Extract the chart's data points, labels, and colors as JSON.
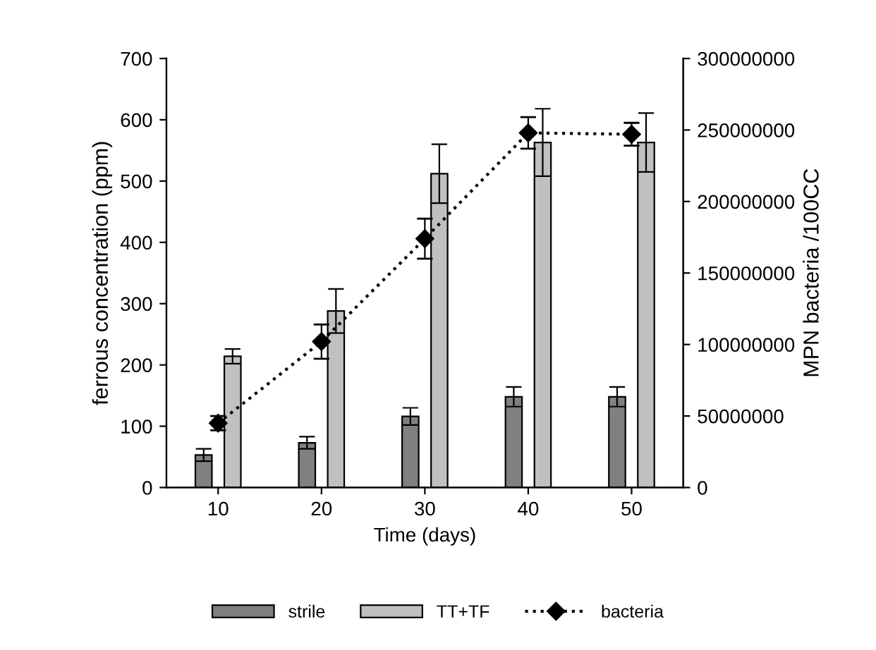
{
  "chart_data": {
    "type": "bar",
    "xlabel": "Time (days)",
    "ylabel": "ferrous concentration (ppm)",
    "y2label": "MPN bacteria /100CC",
    "categories": [
      "10",
      "20",
      "30",
      "40",
      "50"
    ],
    "series": [
      {
        "name": "strile",
        "color": "#808080",
        "values": [
          53,
          73,
          116,
          148,
          148
        ],
        "errors": [
          10,
          10,
          14,
          16,
          16
        ]
      },
      {
        "name": "TT+TF",
        "color": "#c0c0c0",
        "values": [
          214,
          288,
          512,
          563,
          563
        ],
        "errors": [
          12,
          36,
          48,
          55,
          48
        ]
      },
      {
        "name": "bacteria",
        "type": "line",
        "axis": "y2",
        "color": "#000000",
        "marker": "diamond",
        "line_style": "dotted",
        "values": [
          45000000,
          102000000,
          174000000,
          248000000,
          247000000
        ],
        "errors": [
          5000000,
          12000000,
          14000000,
          11000000,
          8000000
        ]
      }
    ],
    "ylim": [
      0,
      700
    ],
    "yticks": [
      0,
      100,
      200,
      300,
      400,
      500,
      600,
      700
    ],
    "y2lim": [
      0,
      300000000
    ],
    "y2ticks": [
      0,
      50000000,
      100000000,
      150000000,
      200000000,
      250000000,
      300000000
    ],
    "grid": false,
    "legend": "bottom"
  }
}
